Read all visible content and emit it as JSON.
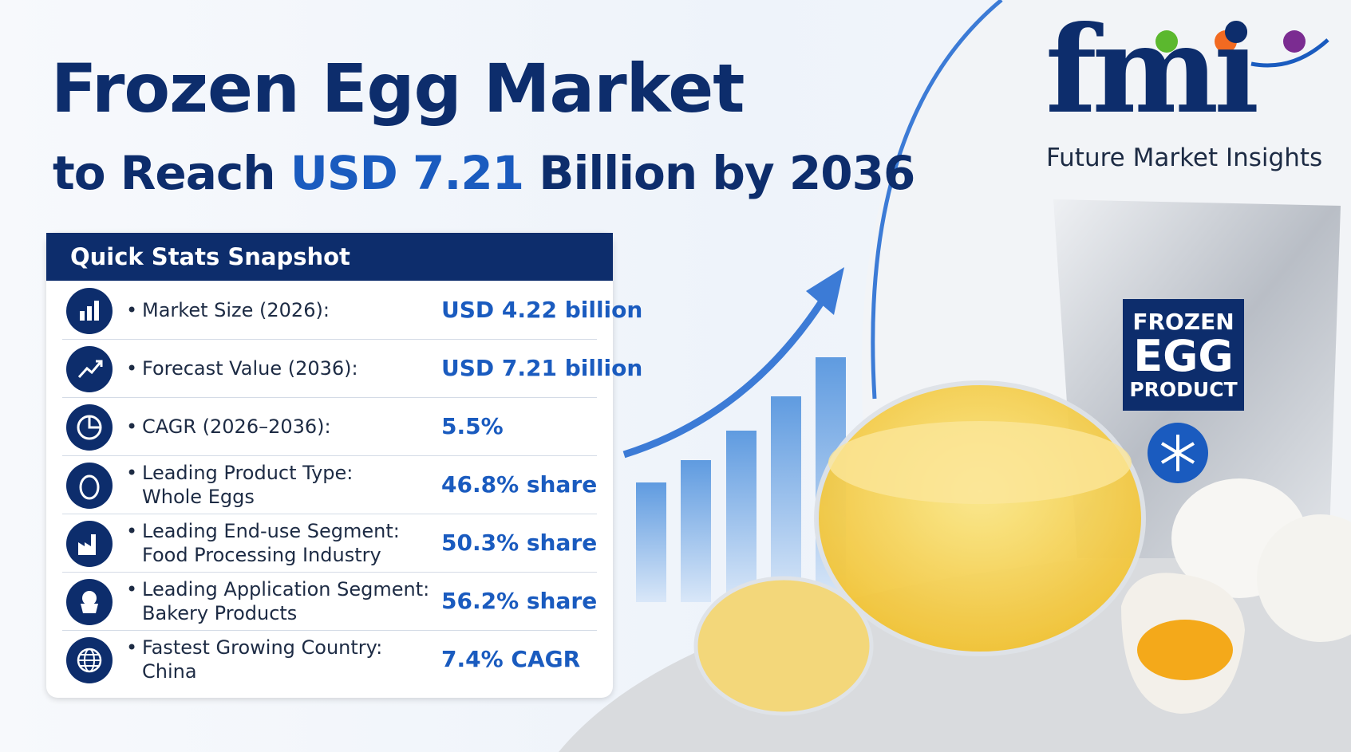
{
  "header": {
    "title": "Frozen Egg Market",
    "subtitle": {
      "prefix": "to Reach",
      "highlight": "USD 7.21",
      "suffix": "Billion by 2036"
    }
  },
  "logo": {
    "mark": "fmi",
    "name": "Future Market Insights"
  },
  "stats": {
    "title": "Quick Stats Snapshot",
    "rows": [
      {
        "label": "Market Size (2026):",
        "detail": null,
        "value": "USD 4.22 billion"
      },
      {
        "label": "Forecast Value (2036):",
        "detail": null,
        "value": "USD 7.21 billion"
      },
      {
        "label": "CAGR (2026–2036):",
        "detail": null,
        "value": "5.5%"
      },
      {
        "label": "Leading Product Type:",
        "detail": "Whole Eggs",
        "value": "46.8% share"
      },
      {
        "label": "Leading End-use Segment:",
        "detail": "Food Processing Industry",
        "value": "50.3% share"
      },
      {
        "label": "Leading Application Segment:",
        "detail": "Bakery Products",
        "value": "56.2% share"
      },
      {
        "label": "Fastest Growing Country:",
        "detail": "China",
        "value": "7.4% CAGR"
      }
    ]
  },
  "package": {
    "line1": "FROZEN",
    "line2": "EGG",
    "line3": "PRODUCT"
  }
}
